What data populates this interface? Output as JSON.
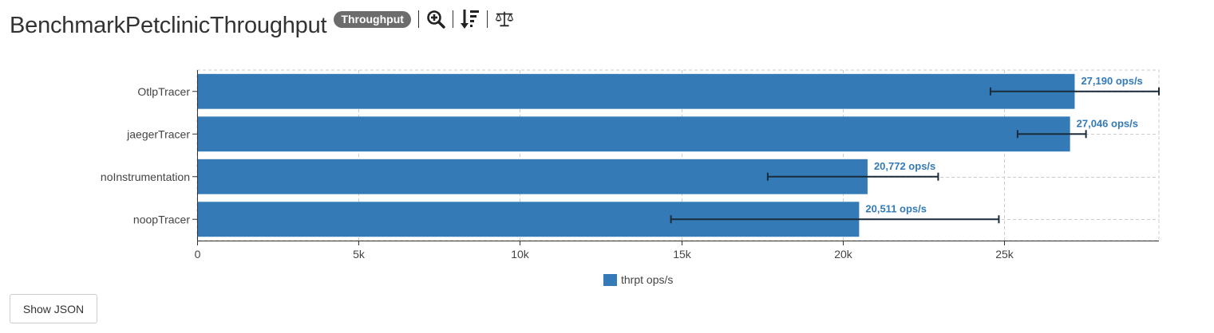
{
  "header": {
    "title": "BenchmarkPetclinicThroughput",
    "badge": "Throughput",
    "tools": [
      "zoom-in-icon",
      "sort-descending-icon",
      "balance-scale-icon"
    ]
  },
  "chart_data": {
    "type": "bar",
    "orientation": "horizontal",
    "categories": [
      "OtlpTracer",
      "jaegerTracer",
      "noInstrumentation",
      "noopTracer"
    ],
    "series": [
      {
        "name": "thrpt ops/s",
        "values": [
          27190,
          27046,
          20772,
          20511
        ],
        "error_low": [
          24580,
          25420,
          17680,
          14680
        ],
        "error_high": [
          29800,
          27540,
          22960,
          24840
        ],
        "value_labels": [
          "27,190 ops/s",
          "27,046 ops/s",
          "20,772 ops/s",
          "20,511 ops/s"
        ]
      }
    ],
    "xlim": [
      0,
      29800
    ],
    "xticks": [
      0,
      5000,
      10000,
      15000,
      20000,
      25000
    ],
    "xtick_labels": [
      "0",
      "5k",
      "10k",
      "15k",
      "20k",
      "25k"
    ],
    "grid": true,
    "legend_position": "bottom",
    "colors": {
      "bar": "#337ab7",
      "error_bar": "#1a2c3c",
      "value_label": "#337ab7",
      "grid": "#cccccc"
    }
  },
  "buttons": {
    "show_json": "Show JSON"
  }
}
